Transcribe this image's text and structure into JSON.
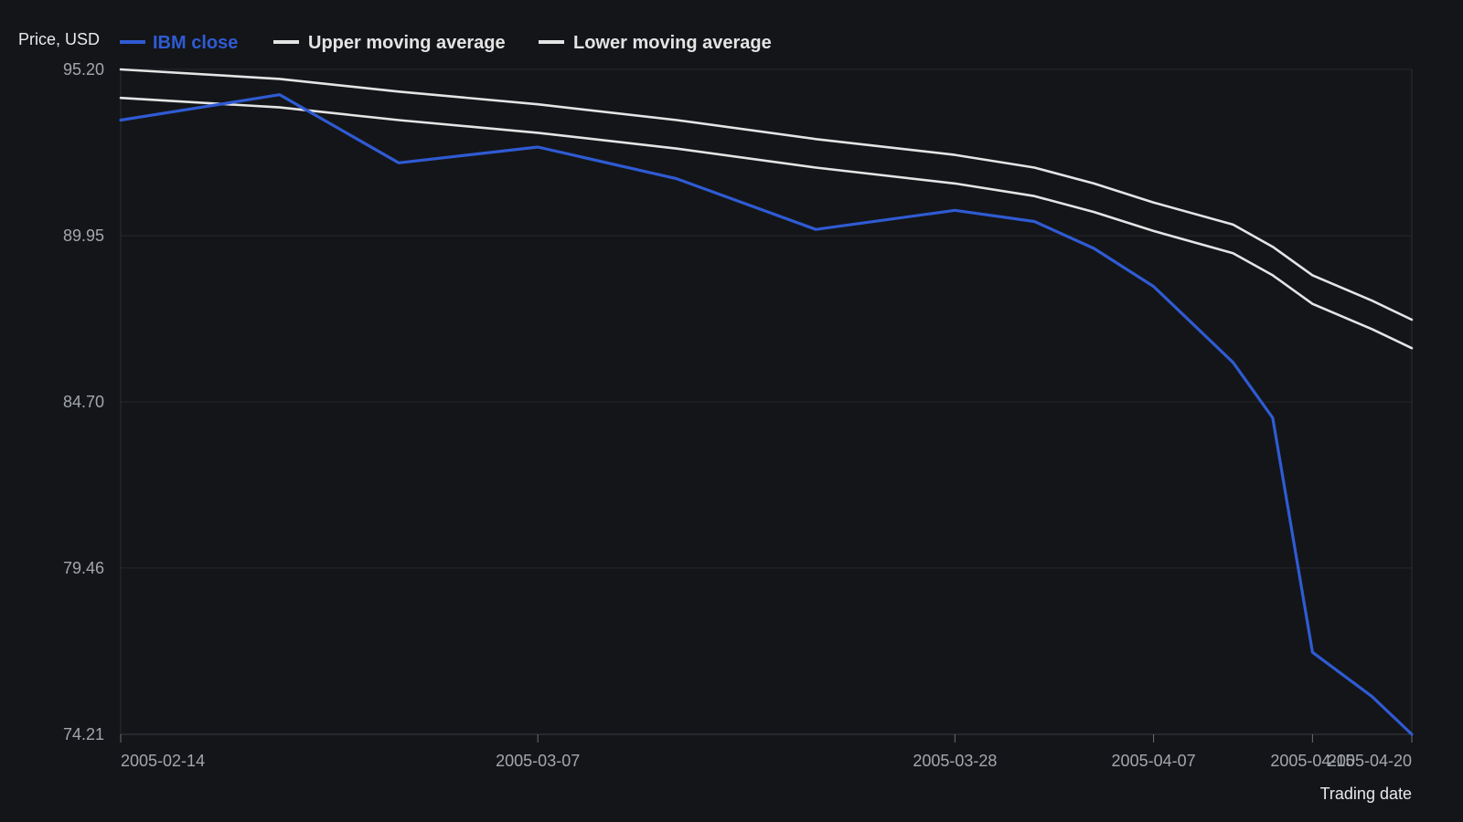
{
  "chart_data": {
    "type": "line",
    "title": "",
    "ylabel": "Price, USD",
    "xlabel": "Trading date",
    "ylim": [
      74.21,
      95.2
    ],
    "yticks": [
      "95.20",
      "89.95",
      "84.70",
      "79.46",
      "74.21"
    ],
    "xticks": [
      "2005-02-14",
      "2005-03-07",
      "2005-03-28",
      "2005-04-07",
      "2005-04-15",
      "2005-04-20"
    ],
    "x": [
      "2005-02-14",
      "2005-02-22",
      "2005-02-28",
      "2005-03-07",
      "2005-03-14",
      "2005-03-21",
      "2005-03-28",
      "2005-04-01",
      "2005-04-04",
      "2005-04-07",
      "2005-04-11",
      "2005-04-13",
      "2005-04-15",
      "2005-04-18",
      "2005-04-20"
    ],
    "legend_position": "top-left",
    "grid": true,
    "series": [
      {
        "name": "IBM close",
        "color": "#2f5bd3",
        "values": [
          93.6,
          94.4,
          92.25,
          92.75,
          91.75,
          90.15,
          90.75,
          90.4,
          89.55,
          88.35,
          85.95,
          84.2,
          76.8,
          75.4,
          74.21
        ]
      },
      {
        "name": "Upper moving average",
        "color": "#e4e4e4",
        "values": [
          95.2,
          94.9,
          94.5,
          94.1,
          93.6,
          93.0,
          92.5,
          92.1,
          91.6,
          91.0,
          90.3,
          89.6,
          88.7,
          87.9,
          87.3
        ]
      },
      {
        "name": "Lower moving average",
        "color": "#e4e4e4",
        "values": [
          94.3,
          94.0,
          93.6,
          93.2,
          92.7,
          92.1,
          91.6,
          91.2,
          90.7,
          90.1,
          89.4,
          88.7,
          87.8,
          87.0,
          86.4
        ]
      }
    ]
  }
}
